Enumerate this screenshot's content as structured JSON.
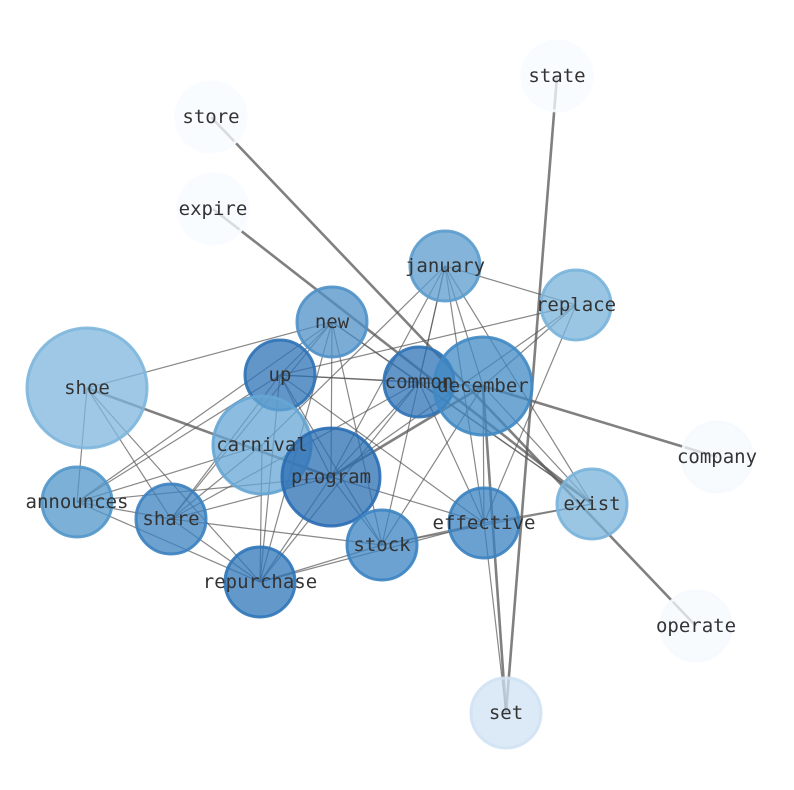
{
  "nodes": [
    {
      "id": "state",
      "color": "#f7fbff"
    },
    {
      "id": "store",
      "color": "#f7fbff"
    },
    {
      "id": "expire",
      "color": "#f7fbff"
    },
    {
      "id": "january",
      "color": "#5b9bcc"
    },
    {
      "id": "replace",
      "color": "#79b3da"
    },
    {
      "id": "new",
      "color": "#4f90c8"
    },
    {
      "id": "shoe",
      "color": "#7db6dc"
    },
    {
      "id": "up",
      "color": "#2d72b6"
    },
    {
      "id": "common",
      "color": "#2d72b6"
    },
    {
      "id": "december",
      "color": "#4089c4"
    },
    {
      "id": "company",
      "color": "#f5f9fe"
    },
    {
      "id": "carnival",
      "color": "#66a6d4"
    },
    {
      "id": "program",
      "color": "#2a6db2"
    },
    {
      "id": "announces",
      "color": "#5196c9"
    },
    {
      "id": "share",
      "color": "#3b81c0"
    },
    {
      "id": "exist",
      "color": "#79b3da"
    },
    {
      "id": "effective",
      "color": "#3a82c0"
    },
    {
      "id": "stock",
      "color": "#3b83c1"
    },
    {
      "id": "repurchase",
      "color": "#2f75b8"
    },
    {
      "id": "operate",
      "color": "#f5f9fe"
    },
    {
      "id": "set",
      "color": "#d0e2f3"
    }
  ],
  "edges": [
    [
      "store",
      "operate",
      2
    ],
    [
      "expire",
      "exist",
      2
    ],
    [
      "state",
      "set",
      2
    ],
    [
      "december",
      "company",
      2
    ],
    [
      "shoe",
      "program",
      2
    ],
    [
      "december",
      "set",
      2
    ],
    [
      "program",
      "december",
      2
    ],
    [
      "shoe",
      "new",
      1
    ],
    [
      "shoe",
      "announces",
      1
    ],
    [
      "shoe",
      "share",
      1
    ],
    [
      "shoe",
      "repurchase",
      1
    ],
    [
      "announces",
      "up",
      1
    ],
    [
      "announces",
      "new",
      1
    ],
    [
      "announces",
      "carnival",
      1
    ],
    [
      "announces",
      "program",
      1
    ],
    [
      "announces",
      "share",
      1
    ],
    [
      "announces",
      "repurchase",
      1
    ],
    [
      "share",
      "up",
      1
    ],
    [
      "share",
      "new",
      1
    ],
    [
      "share",
      "carnival",
      1
    ],
    [
      "share",
      "program",
      1
    ],
    [
      "share",
      "common",
      1
    ],
    [
      "share",
      "repurchase",
      1
    ],
    [
      "share",
      "stock",
      1
    ],
    [
      "repurchase",
      "up",
      1
    ],
    [
      "repurchase",
      "new",
      1
    ],
    [
      "repurchase",
      "carnival",
      1
    ],
    [
      "repurchase",
      "program",
      1
    ],
    [
      "repurchase",
      "common",
      1
    ],
    [
      "repurchase",
      "stock",
      1
    ],
    [
      "repurchase",
      "effective",
      1
    ],
    [
      "up",
      "common",
      1
    ],
    [
      "up",
      "december",
      1
    ],
    [
      "up",
      "effective",
      1
    ],
    [
      "up",
      "stock",
      1
    ],
    [
      "up",
      "program",
      1
    ],
    [
      "up",
      "new",
      1
    ],
    [
      "new",
      "common",
      1
    ],
    [
      "new",
      "program",
      1
    ],
    [
      "new",
      "stock",
      1
    ],
    [
      "new",
      "exist",
      1
    ],
    [
      "january",
      "carnival",
      1
    ],
    [
      "january",
      "replace",
      1
    ],
    [
      "january",
      "common",
      1
    ],
    [
      "january",
      "program",
      1
    ],
    [
      "january",
      "stock",
      1
    ],
    [
      "january",
      "effective",
      1
    ],
    [
      "january",
      "exist",
      1
    ],
    [
      "january",
      "december",
      1
    ],
    [
      "replace",
      "up",
      1
    ],
    [
      "replace",
      "december",
      1
    ],
    [
      "replace",
      "effective",
      1
    ],
    [
      "replace",
      "program",
      1
    ],
    [
      "common",
      "program",
      1
    ],
    [
      "common",
      "effective",
      1
    ],
    [
      "common",
      "exist",
      1
    ],
    [
      "december",
      "exist",
      1
    ],
    [
      "december",
      "effective",
      1
    ],
    [
      "december",
      "stock",
      1
    ],
    [
      "stock",
      "effective",
      1
    ],
    [
      "stock",
      "exist",
      1
    ],
    [
      "effective",
      "exist",
      1
    ],
    [
      "program",
      "effective",
      1
    ],
    [
      "program",
      "stock",
      1
    ],
    [
      "effective",
      "set",
      1
    ]
  ]
}
